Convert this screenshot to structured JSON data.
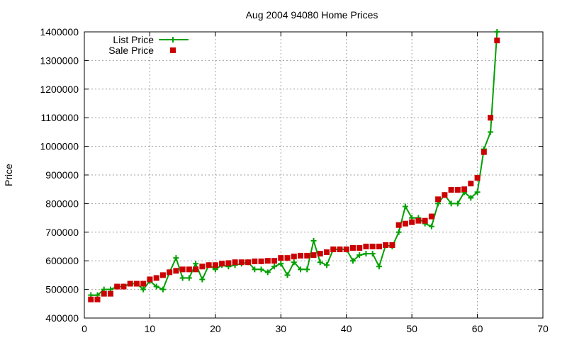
{
  "chart_data": {
    "type": "line",
    "title": "Aug 2004 94080 Home Prices",
    "xlabel": "",
    "ylabel": "Price",
    "xlim": [
      0,
      70
    ],
    "ylim": [
      400000,
      1400000
    ],
    "xticks": [
      0,
      10,
      20,
      30,
      40,
      50,
      60,
      70
    ],
    "yticks": [
      400000,
      500000,
      600000,
      700000,
      800000,
      900000,
      1000000,
      1100000,
      1200000,
      1300000,
      1400000
    ],
    "grid": true,
    "legend_position": "top-left",
    "series": [
      {
        "name": "List Price",
        "style": "line-points",
        "marker": "plus",
        "color": "#00a000",
        "x": [
          1,
          2,
          3,
          4,
          5,
          6,
          7,
          8,
          9,
          10,
          11,
          12,
          13,
          14,
          15,
          16,
          17,
          18,
          19,
          20,
          21,
          22,
          23,
          24,
          25,
          26,
          27,
          28,
          29,
          30,
          31,
          32,
          33,
          34,
          35,
          36,
          37,
          38,
          39,
          40,
          41,
          42,
          43,
          44,
          45,
          46,
          47,
          48,
          49,
          50,
          51,
          52,
          53,
          54,
          55,
          56,
          57,
          58,
          59,
          60,
          61,
          62,
          63
        ],
        "y": [
          480000,
          480000,
          500000,
          500000,
          510000,
          510000,
          520000,
          520000,
          500000,
          530000,
          510000,
          500000,
          560000,
          610000,
          540000,
          540000,
          590000,
          535000,
          585000,
          570000,
          585000,
          580000,
          585000,
          590000,
          595000,
          570000,
          570000,
          560000,
          580000,
          590000,
          550000,
          595000,
          570000,
          570000,
          670000,
          595000,
          585000,
          640000,
          640000,
          640000,
          600000,
          620000,
          625000,
          625000,
          580000,
          655000,
          650000,
          700000,
          790000,
          750000,
          750000,
          730000,
          720000,
          800000,
          830000,
          800000,
          800000,
          840000,
          820000,
          840000,
          990000,
          1050000,
          1400000
        ]
      },
      {
        "name": "Sale Price",
        "style": "points",
        "marker": "square",
        "color": "#cc0000",
        "x": [
          1,
          2,
          3,
          4,
          5,
          6,
          7,
          8,
          9,
          10,
          11,
          12,
          13,
          14,
          15,
          16,
          17,
          18,
          19,
          20,
          21,
          22,
          23,
          24,
          25,
          26,
          27,
          28,
          29,
          30,
          31,
          32,
          33,
          34,
          35,
          36,
          37,
          38,
          39,
          40,
          41,
          42,
          43,
          44,
          45,
          46,
          47,
          48,
          49,
          50,
          51,
          52,
          53,
          54,
          55,
          56,
          57,
          58,
          59,
          60,
          61,
          62,
          63
        ],
        "y": [
          465000,
          465000,
          485000,
          485000,
          510000,
          510000,
          520000,
          520000,
          520000,
          535000,
          540000,
          550000,
          560000,
          565000,
          570000,
          570000,
          570000,
          580000,
          585000,
          585000,
          590000,
          592000,
          595000,
          595000,
          595000,
          598000,
          598000,
          600000,
          600000,
          610000,
          610000,
          615000,
          618000,
          618000,
          620000,
          625000,
          630000,
          640000,
          640000,
          640000,
          645000,
          645000,
          650000,
          650000,
          650000,
          655000,
          655000,
          725000,
          730000,
          735000,
          740000,
          740000,
          755000,
          815000,
          830000,
          848000,
          848000,
          850000,
          870000,
          890000,
          980000,
          1100000,
          1370000
        ]
      }
    ]
  }
}
